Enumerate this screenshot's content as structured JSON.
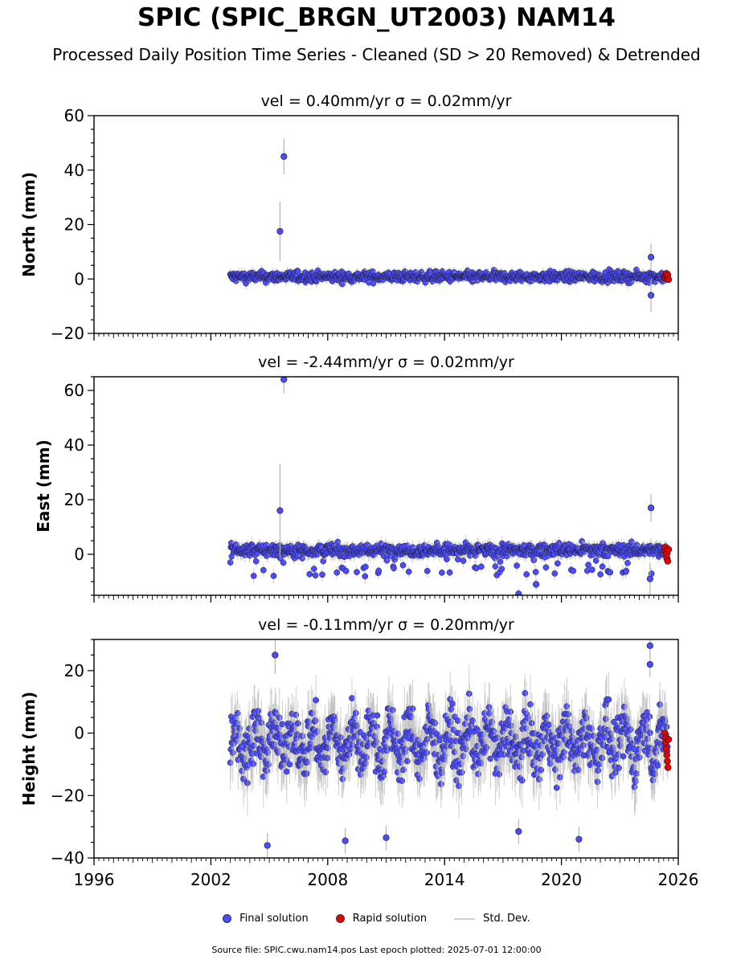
{
  "title": "SPIC (SPIC_BRGN_UT2003) NAM14",
  "subtitle": "Processed Daily Position Time Series - Cleaned (SD > 20 Removed) & Detrended",
  "legend": {
    "final": "Final solution",
    "rapid": "Rapid solution",
    "stddev": "Std. Dev."
  },
  "footer": "Source file: SPIC.cwu.nam14.pos  Last epoch plotted: 2025-07-01 12:00:00",
  "colors": {
    "final": "#4b4bff",
    "rapid": "#e60000",
    "stddev": "#b4b4b4",
    "marker_edge": "#1a1a1a"
  },
  "chart_data": [
    {
      "type": "scatter",
      "title": "vel = 0.40mm/yr   σ = 0.02mm/yr",
      "ylabel": "North (mm)",
      "xlim": [
        1996,
        2026
      ],
      "ylim": [
        -20,
        60
      ],
      "yticks": [
        -20,
        0,
        20,
        40,
        60
      ],
      "xticks": [
        1996,
        2002,
        2008,
        2014,
        2020,
        2026
      ],
      "show_xtick_labels": false,
      "data_span": [
        2003.0,
        2025.45
      ],
      "rapid_span": [
        2025.3,
        2025.5
      ],
      "band": {
        "center": 0.8,
        "half_width": 2.4
      },
      "outliers": [
        {
          "x": 2005.75,
          "y": 45.0,
          "err": 6.5
        },
        {
          "x": 2005.55,
          "y": 17.5,
          "err": 11.0
        },
        {
          "x": 2024.6,
          "y": 8.0,
          "err": 5.0
        },
        {
          "x": 2024.6,
          "y": -6.0,
          "err": 6.0
        }
      ],
      "rapid_values": [
        0.5,
        1.2,
        2.0,
        0.9,
        1.5,
        -0.2
      ]
    },
    {
      "type": "scatter",
      "title": "vel = -2.44mm/yr   σ = 0.02mm/yr",
      "ylabel": "East (mm)",
      "xlim": [
        1996,
        2026
      ],
      "ylim": [
        -15,
        65
      ],
      "yticks": [
        0,
        20,
        40,
        60
      ],
      "xticks": [
        1996,
        2002,
        2008,
        2014,
        2020,
        2026
      ],
      "show_xtick_labels": false,
      "data_span": [
        2003.0,
        2025.45
      ],
      "rapid_span": [
        2025.3,
        2025.5
      ],
      "band": {
        "center": 1.5,
        "half_width": 3.0
      },
      "outliers": [
        {
          "x": 2005.75,
          "y": 64.0,
          "err": 5.0
        },
        {
          "x": 2005.55,
          "y": 16.0,
          "err": 17.0
        },
        {
          "x": 2024.6,
          "y": 17.0,
          "err": 5.0
        },
        {
          "x": 2024.55,
          "y": -9.0,
          "err": 6.0
        },
        {
          "x": 2017.8,
          "y": -14.5,
          "err": 2.0
        },
        {
          "x": 2018.7,
          "y": -11.0,
          "err": 2.0
        }
      ],
      "rapid_values": [
        2.5,
        1.0,
        0.0,
        -1.5,
        -2.5,
        1.8
      ]
    },
    {
      "type": "scatter",
      "title": "vel = -0.11mm/yr   σ = 0.20mm/yr",
      "ylabel": "Height (mm)",
      "xlim": [
        1996,
        2026
      ],
      "ylim": [
        -40,
        30
      ],
      "yticks": [
        -40,
        -20,
        0,
        20
      ],
      "xticks": [
        1996,
        2002,
        2008,
        2014,
        2020,
        2026
      ],
      "xtick_labels": [
        "1996",
        "2002",
        "2008",
        "2014",
        "2020",
        "2026"
      ],
      "show_xtick_labels": true,
      "data_span": [
        2003.0,
        2025.45
      ],
      "rapid_span": [
        2025.3,
        2025.5
      ],
      "band": {
        "center": -3.0,
        "half_width": 11.0
      },
      "outliers": [
        {
          "x": 2004.9,
          "y": -36.0,
          "err": 4.0
        },
        {
          "x": 2008.9,
          "y": -34.5,
          "err": 4.0
        },
        {
          "x": 2011.0,
          "y": -33.5,
          "err": 4.0
        },
        {
          "x": 2020.9,
          "y": -34.0,
          "err": 4.0
        },
        {
          "x": 2024.55,
          "y": 28.0,
          "err": 4.0
        },
        {
          "x": 2024.55,
          "y": 22.0,
          "err": 4.0
        },
        {
          "x": 2005.3,
          "y": 25.0,
          "err": 6.0
        },
        {
          "x": 2017.8,
          "y": -31.5,
          "err": 4.0
        }
      ],
      "rapid_values": [
        0.0,
        -1.5,
        -3.0,
        -5.0,
        -7.0,
        -9.0,
        -11.0,
        -2.0
      ]
    }
  ]
}
